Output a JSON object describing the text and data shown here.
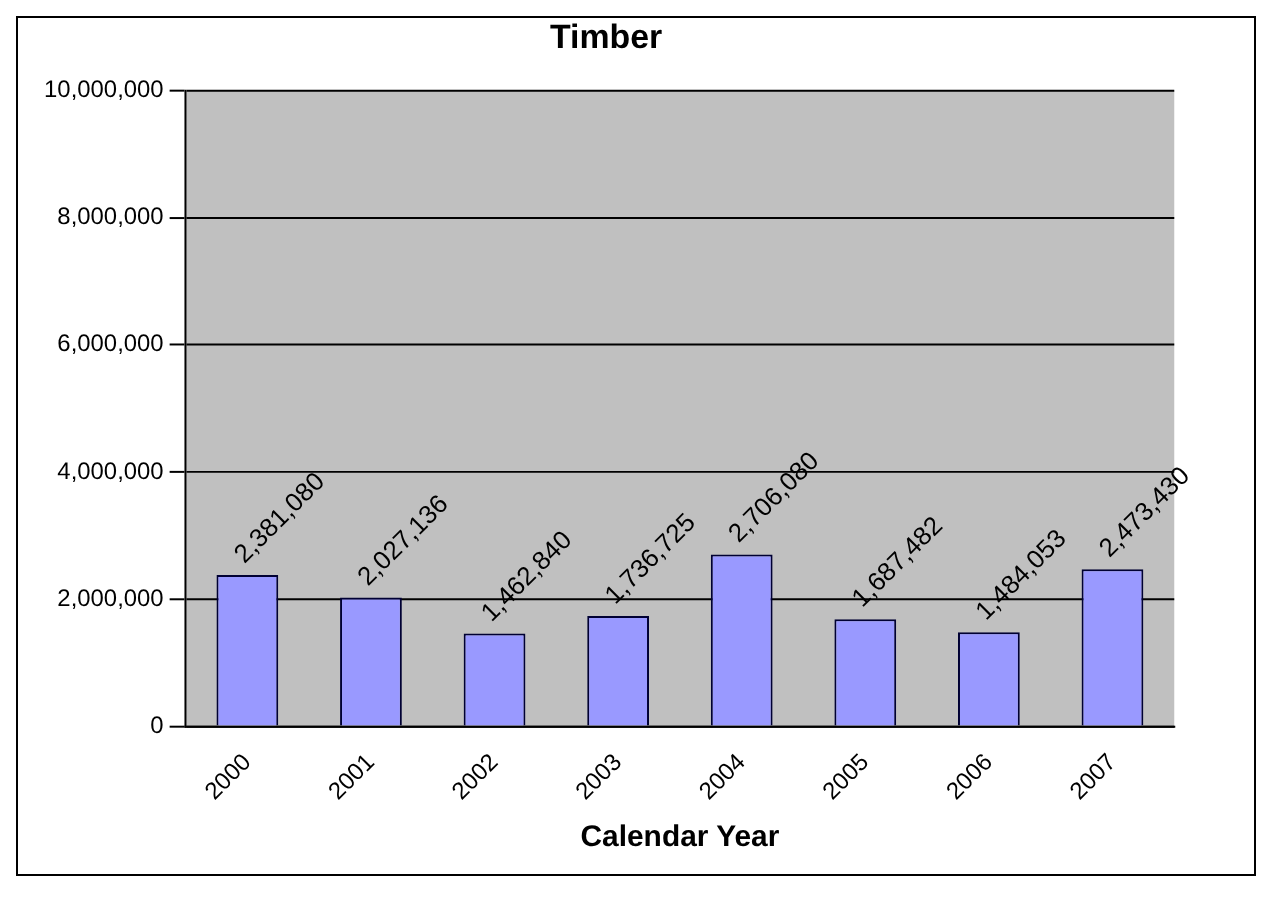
{
  "chart_data": {
    "type": "bar",
    "title": "Timber",
    "xlabel": "Calendar Year",
    "categories": [
      "2000",
      "2001",
      "2002",
      "2003",
      "2004",
      "2005",
      "2006",
      "2007"
    ],
    "values": [
      2381080,
      2027136,
      1462840,
      1736725,
      2706080,
      1687482,
      1484053,
      2473430
    ],
    "color": "#9999ff",
    "ylim": [
      0,
      10000000
    ],
    "yticks": [
      {
        "value": 0,
        "label": "0"
      },
      {
        "value": 2000000,
        "label": "2,000,000"
      },
      {
        "value": 4000000,
        "label": "4,000,000"
      },
      {
        "value": 6000000,
        "label": "6,000,000"
      },
      {
        "value": 8000000,
        "label": "8,000,000"
      },
      {
        "value": 10000000,
        "label": "10,000,000"
      }
    ],
    "value_labels": [
      "2,381,080",
      "2,027,136",
      "1,462,840",
      "1,736,725",
      "2,706,080",
      "1,687,482",
      "1,484,053",
      "2,473,430"
    ],
    "grid": "y",
    "legend": false
  }
}
